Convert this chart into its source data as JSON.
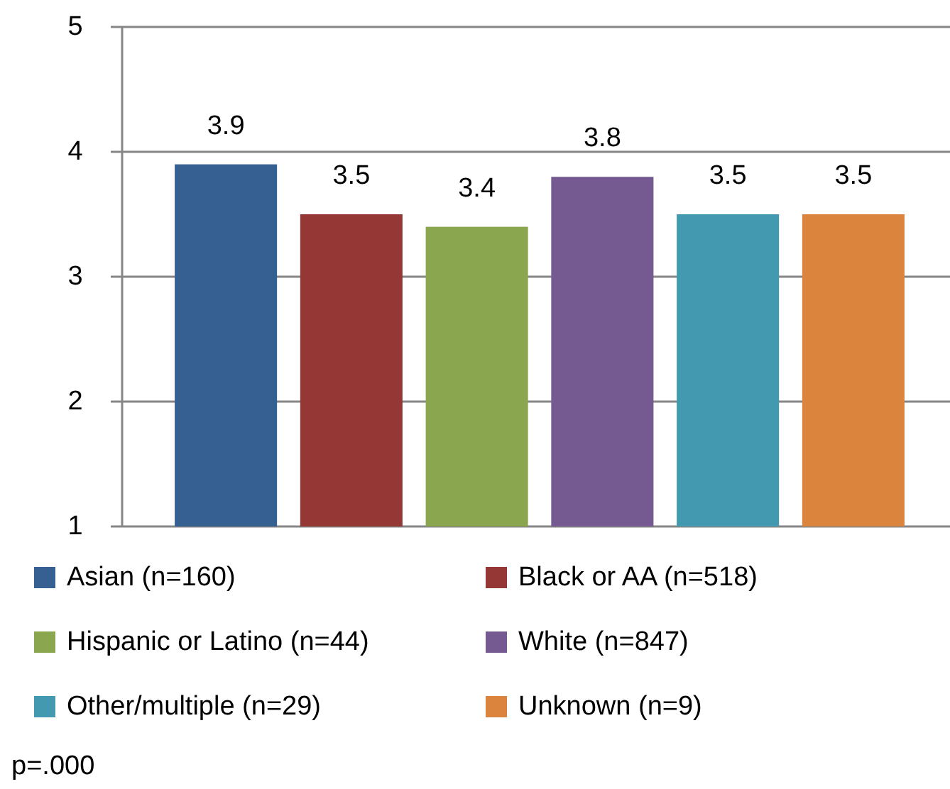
{
  "chart_data": {
    "type": "bar",
    "categories": [
      null
    ],
    "series": [
      {
        "name": "Asian (n=160)",
        "color": "#376092",
        "values": [
          3.9
        ]
      },
      {
        "name": "Black or AA (n=518)",
        "color": "#953735",
        "values": [
          3.5
        ]
      },
      {
        "name": "Hispanic or Latino (n=44)",
        "color": "#8aa64f",
        "values": [
          3.4
        ]
      },
      {
        "name": "White (n=847)",
        "color": "#745a91",
        "values": [
          3.8
        ]
      },
      {
        "name": "Other/multiple (n=29)",
        "color": "#4299b0",
        "values": [
          3.5
        ]
      },
      {
        "name": "Unknown (n=9)",
        "color": "#db843d",
        "values": [
          3.5
        ]
      }
    ],
    "ylim": [
      1,
      5
    ],
    "yticks": [
      1,
      2,
      3,
      4,
      5
    ],
    "grid": "y",
    "legend": "bottom",
    "data_labels": true,
    "annotations": [
      "p=.000"
    ]
  }
}
